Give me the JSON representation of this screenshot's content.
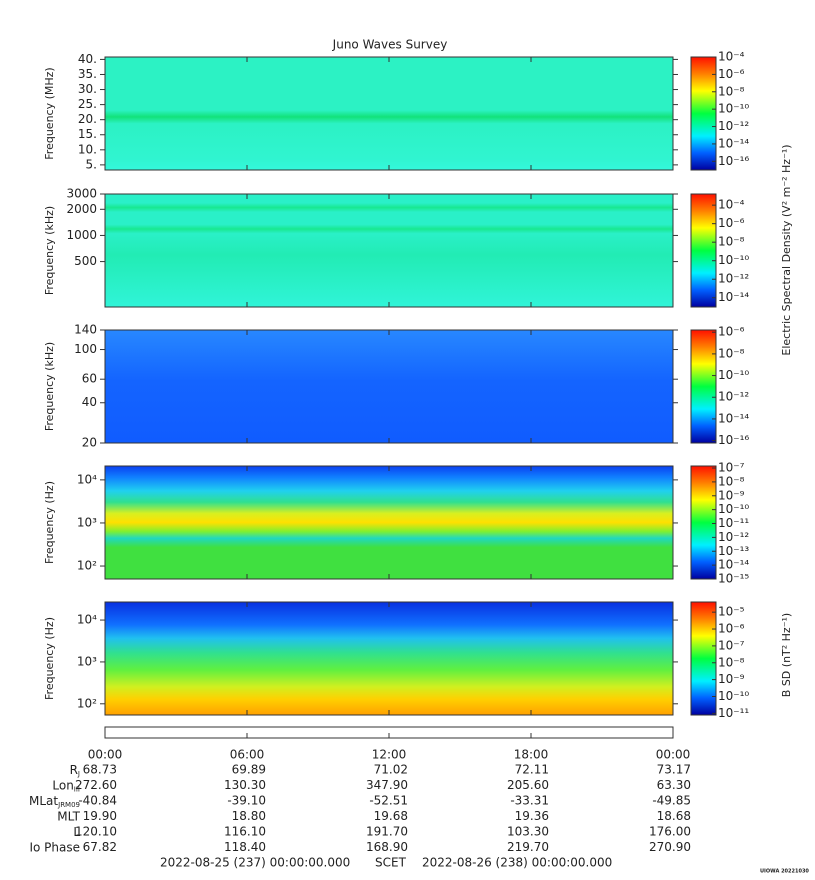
{
  "chart_data": {
    "type": "spectrogram",
    "title": "Juno Waves Survey",
    "xlim": [
      0,
      24
    ],
    "xticks": [
      {
        "value": 0,
        "label": "00:00"
      },
      {
        "value": 6,
        "label": "06:00"
      },
      {
        "value": 12,
        "label": "12:00"
      },
      {
        "value": 18,
        "label": "18:00"
      },
      {
        "value": 24,
        "label": "00:00"
      }
    ],
    "panels": [
      {
        "ylabel": "Frequency (MHz)",
        "scale": "linear",
        "ylim": [
          3.3,
          40.8
        ],
        "yticks": [
          {
            "value": 5,
            "label": "5."
          },
          {
            "value": 10,
            "label": "10."
          },
          {
            "value": 15,
            "label": "15."
          },
          {
            "value": 20,
            "label": "20."
          },
          {
            "value": 25,
            "label": "25."
          },
          {
            "value": 30,
            "label": "30."
          },
          {
            "value": 35,
            "label": "35."
          },
          {
            "value": 40,
            "label": "40."
          }
        ],
        "clim": [
          1e-17,
          0.0001
        ],
        "cticks": [
          {
            "value": 0.0001,
            "label": "10⁻⁴"
          },
          {
            "value": 1e-06,
            "label": "10⁻⁶"
          },
          {
            "value": 1e-08,
            "label": "10⁻⁸"
          },
          {
            "value": 1e-10,
            "label": "10⁻¹⁰"
          },
          {
            "value": 1e-12,
            "label": "10⁻¹²"
          },
          {
            "value": 1e-14,
            "label": "10⁻¹⁴"
          },
          {
            "value": 1e-16,
            "label": "10⁻¹⁶"
          }
        ]
      },
      {
        "ylabel": "Frequency (kHz)",
        "scale": "log",
        "ylim": [
          150,
          3000
        ],
        "yticks": [
          500,
          1000,
          2000,
          3000
        ],
        "clim": [
          1e-15,
          0.0016
        ],
        "cticks": [
          {
            "value": 0.0001,
            "label": "10⁻⁴"
          },
          {
            "value": 1e-06,
            "label": "10⁻⁶"
          },
          {
            "value": 1e-08,
            "label": "10⁻⁸"
          },
          {
            "value": 1e-10,
            "label": "10⁻¹⁰"
          },
          {
            "value": 1e-12,
            "label": "10⁻¹²"
          },
          {
            "value": 1e-14,
            "label": "10⁻¹⁴"
          }
        ]
      },
      {
        "ylabel": "Frequency (kHz)",
        "scale": "log",
        "ylim": [
          20,
          140
        ],
        "yticks": [
          20,
          40,
          60,
          100,
          140
        ],
        "clim": [
          6e-17,
          1.6e-06
        ],
        "cticks": [
          {
            "value": 1e-06,
            "label": "10⁻⁶"
          },
          {
            "value": 1e-08,
            "label": "10⁻⁸"
          },
          {
            "value": 1e-10,
            "label": "10⁻¹⁰"
          },
          {
            "value": 1e-12,
            "label": "10⁻¹²"
          },
          {
            "value": 1e-14,
            "label": "10⁻¹⁴"
          },
          {
            "value": 1e-16,
            "label": "10⁻¹⁶"
          }
        ]
      },
      {
        "ylabel": "Frequency (Hz)",
        "scale": "log",
        "ylim": [
          50,
          21000
        ],
        "yticks": [
          {
            "value": 100,
            "label": "10²"
          },
          {
            "value": 1000,
            "label": "10³"
          },
          {
            "value": 10000,
            "label": "10⁴"
          }
        ],
        "clim": [
          1e-15,
          1.4e-07
        ],
        "cticks": [
          {
            "value": 1e-07,
            "label": "10⁻⁷"
          },
          {
            "value": 1e-08,
            "label": "10⁻⁸"
          },
          {
            "value": 1e-09,
            "label": "10⁻⁹"
          },
          {
            "value": 1e-10,
            "label": "10⁻¹⁰"
          },
          {
            "value": 1e-11,
            "label": "10⁻¹¹"
          },
          {
            "value": 1e-12,
            "label": "10⁻¹²"
          },
          {
            "value": 1e-13,
            "label": "10⁻¹³"
          },
          {
            "value": 1e-14,
            "label": "10⁻¹⁴"
          },
          {
            "value": 1e-15,
            "label": "10⁻¹⁵"
          }
        ]
      },
      {
        "ylabel": "Frequency (Hz)",
        "scale": "log",
        "ylim": [
          54,
          27000
        ],
        "yticks": [
          {
            "value": 100,
            "label": "10²"
          },
          {
            "value": 1000,
            "label": "10³"
          },
          {
            "value": 10000,
            "label": "10⁴"
          }
        ],
        "clim": [
          8e-12,
          4e-05
        ],
        "cticks": [
          {
            "value": 1e-05,
            "label": "10⁻⁵"
          },
          {
            "value": 1e-06,
            "label": "10⁻⁶"
          },
          {
            "value": 1e-07,
            "label": "10⁻⁷"
          },
          {
            "value": 1e-08,
            "label": "10⁻⁸"
          },
          {
            "value": 1e-09,
            "label": "10⁻⁹"
          },
          {
            "value": 1e-10,
            "label": "10⁻¹⁰"
          },
          {
            "value": 1e-11,
            "label": "10⁻¹¹"
          }
        ]
      }
    ],
    "colorbar_labels": [
      "Electric Spectral Density (V² m⁻² Hz⁻¹)",
      "B SD (nT² Hz⁻¹)"
    ],
    "ephemeris": [
      {
        "label": "R",
        "sub": "J",
        "values": [
          "68.73",
          "69.89",
          "71.02",
          "72.11",
          "73.17"
        ]
      },
      {
        "label": "Lon",
        "sub": "III",
        "values": [
          "272.60",
          "130.30",
          "347.90",
          "205.60",
          "63.30"
        ]
      },
      {
        "label": "MLat",
        "sub": "JRM09",
        "values": [
          "-40.84",
          "-39.10",
          "-52.51",
          "-33.31",
          "-49.85"
        ]
      },
      {
        "label": "MLT",
        "values": [
          "19.90",
          "18.80",
          "19.68",
          "19.36",
          "18.68"
        ]
      },
      {
        "label": "L",
        "values": [
          "120.10",
          "116.10",
          "191.70",
          "103.30",
          "176.00"
        ]
      },
      {
        "label": "Io Phase",
        "values": [
          "67.82",
          "118.40",
          "168.90",
          "219.70",
          "270.90"
        ]
      }
    ],
    "footer": {
      "start": "2022-08-25 (237) 00:00:00.000",
      "frame": "SCET",
      "end": "2022-08-26 (238) 00:00:00.000",
      "credit": "UIOWA 20221030"
    }
  }
}
